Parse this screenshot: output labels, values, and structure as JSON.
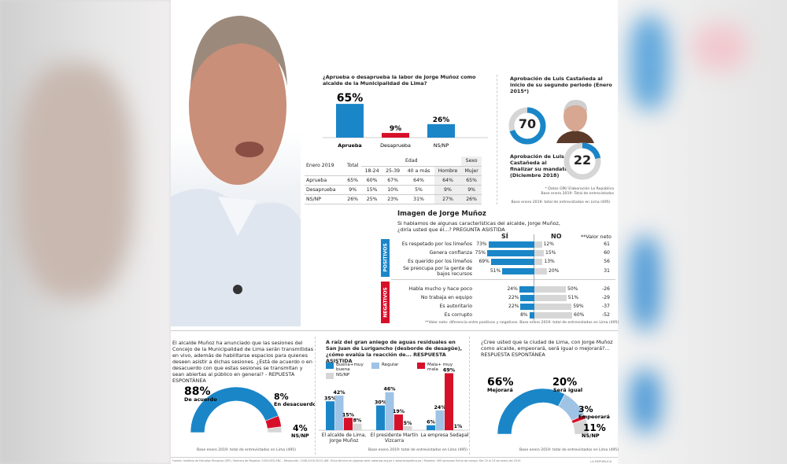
{
  "colors": {
    "blue": "#1a86c8",
    "light_blue": "#9fc3e5",
    "red": "#d7102a",
    "gray": "#d6d6d6"
  },
  "approval": {
    "question": "¿Aprueba o desaprueba la labor de Jorge Muñoz como alcalde de la Municipalidad de Lima?",
    "chart_data": {
      "type": "bar",
      "categories": [
        "Aprueba",
        "Desaprueba",
        "NS/NP"
      ],
      "values": [
        65,
        9,
        26
      ],
      "value_labels": [
        "65%",
        "9%",
        "26%"
      ],
      "colors": [
        "#1a86c8",
        "#d7102a",
        "#1a86c8"
      ]
    },
    "table": {
      "corner": "Enero 2019",
      "total": "Total",
      "edad": "Edad",
      "sexo": "Sexo",
      "cols": [
        "18-24",
        "25-39",
        "40 a más",
        "Hombre",
        "Mujer"
      ],
      "rows": [
        {
          "label": "Aprueba",
          "cells": [
            "65%",
            "60%",
            "67%",
            "64%",
            "64%",
            "65%"
          ]
        },
        {
          "label": "Desaprueba",
          "cells": [
            "9%",
            "15%",
            "10%",
            "5%",
            "9%",
            "9%"
          ]
        },
        {
          "label": "NS/NP",
          "cells": [
            "26%",
            "25%",
            "23%",
            "31%",
            "27%",
            "26%"
          ]
        }
      ]
    }
  },
  "castaneda": {
    "title1": "Aprobación de Luis Castañeda al inicio de su segundo periodo (Enero 2015*)",
    "value1": "70",
    "fill1": 70,
    "title2": "Aprobación de Luis Castañeda al finalizar su mandato (Diciembre 2018)",
    "value2": "22",
    "fill2": 22,
    "note1": "* Datos GfK/ Elaboración La República",
    "note2": "Base enero 2019: Total de entrevistados",
    "base": "Base enero 2019: total de entrevistados en Lima (495)"
  },
  "imagen": {
    "title": "Imagen de Jorge Muñoz",
    "question": "Si hablamos de algunas características del alcalde, Jorge Muñoz, ¿diría usted que él...? PREGUNTA ASISTIDA",
    "head_si": "SÍ",
    "head_no": "NO",
    "head_neto": "**Valor neto",
    "positivos": "POSITIVOS",
    "negativos": "NEGATIVOS",
    "chart_data": {
      "type": "bar",
      "orientation": "diverging",
      "positive": [
        {
          "label": "Es respetado por los limeños",
          "si": 73,
          "no": 12,
          "neto": 61
        },
        {
          "label": "Genera confianza",
          "si": 75,
          "no": 15,
          "neto": 60
        },
        {
          "label": "Es querido por los limeños",
          "si": 69,
          "no": 13,
          "neto": 56
        },
        {
          "label": "Se preocupa por la gente de bajos recursos",
          "si": 51,
          "no": 20,
          "neto": 31
        }
      ],
      "negative": [
        {
          "label": "Habla mucho y hace poco",
          "si": 24,
          "no": 50,
          "neto": -26
        },
        {
          "label": "No trabaja en equipo",
          "si": 22,
          "no": 51,
          "neto": -29
        },
        {
          "label": "Es autoritario",
          "si": 22,
          "no": 59,
          "neto": -37
        },
        {
          "label": "Es corrupto",
          "si": 8,
          "no": 60,
          "neto": -52
        }
      ]
    },
    "note": "**Valor neto: diferencia entre positivos y negativos. Base enero 2019: total de entrevistados en Lima (495)"
  },
  "sesiones": {
    "question": "El alcalde Muñoz ha anunciado que las sesiones del Concejo de la Municipalidad de Lima serán transmitidas en vivo, además de habilitarse espacios para quienes deseen asistir a dichas sesiones. ¿Está de acuerdo o en desacuerdo con que estas sesiones se transmitan y sean abiertas al público en general? - REPUESTA ESPONTÁNEA",
    "chart_data": {
      "type": "pie",
      "shape": "semicircle",
      "slices": [
        {
          "label": "De acuerdo",
          "value": 88,
          "text": "88%",
          "color": "#1a86c8"
        },
        {
          "label": "En desacuerdo",
          "value": 8,
          "text": "8%",
          "color": "#d7102a"
        },
        {
          "label": "NS/NP",
          "value": 4,
          "text": "4%",
          "color": "#d6d6d6"
        }
      ]
    },
    "base": "Base enero 2019: total de entrevistados en Lima (495)"
  },
  "aniego": {
    "question": "A raíz del gran aniego de aguas residuales en San Juan de Lurigancho (desborde de desagüe), ¿cómo evalúa la reacción de... RESPUESTA ASISTIDA",
    "chart_data": {
      "type": "bar",
      "categories": [
        "El alcalde de Lima, Jorge Muñoz",
        "El presidente Martín Vizcarra",
        "La empresa Sedapal"
      ],
      "series": [
        {
          "name": "Buena+muy buena",
          "values": [
            35,
            30,
            6
          ],
          "color": "#1a86c8"
        },
        {
          "name": "Regular",
          "values": [
            42,
            46,
            24
          ],
          "color": "#9fc3e5"
        },
        {
          "name": "Mala+ muy mala",
          "values": [
            15,
            19,
            69
          ],
          "color": "#d7102a"
        },
        {
          "name": "NS/NP",
          "values": [
            8,
            5,
            1
          ],
          "color": "#d6d6d6"
        }
      ],
      "legend": "top-left"
    },
    "base": "Base enero 2019: total de entrevistados en Lima (495)"
  },
  "futuro": {
    "question": "¿Cree usted que la ciudad de Lima, con Jorge Muñoz como alcalde, empeorará, será igual o mejorará?... RESPUESTA ESPONTÁNEA",
    "chart_data": {
      "type": "pie",
      "shape": "semicircle",
      "slices": [
        {
          "label": "Mejorará",
          "value": 66,
          "text": "66%",
          "color": "#1a86c8"
        },
        {
          "label": "Será igual",
          "value": 20,
          "text": "20%",
          "color": "#9fc3e5"
        },
        {
          "label": "Empeorará",
          "value": 3,
          "text": "3%",
          "color": "#d7102a"
        },
        {
          "label": "NS/NP",
          "value": 11,
          "text": "11%",
          "color": "#d6d6d6"
        }
      ]
    },
    "base": "Base enero 2019: total de entrevistados en Lima (495)"
  },
  "footer": {
    "source": "Fuente: Instituto de Estudios Peruanos (IEP) / Número de Registro: 0303-REG.ENC - Resolución: 1308-2018 DCCG JNE. Ficha técnica en páginas web: www.iep.org.pe y www.larepublica.pe / Muestra: 495 personas Fecha de campo: Del 19 al 23 de enero del 2019",
    "brand": "LA REPÚBLICA"
  }
}
